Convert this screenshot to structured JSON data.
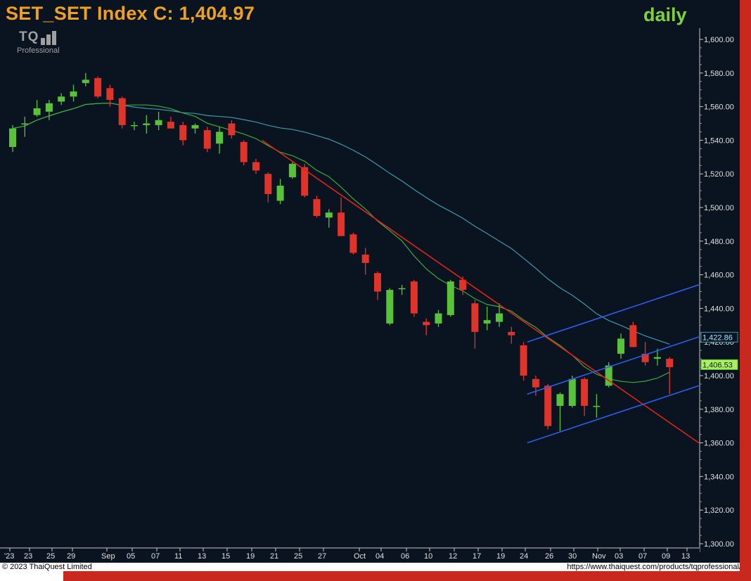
{
  "header": {
    "title": "SET_SET Index C: 1,404.97",
    "period": "daily",
    "logo_text": "TQ",
    "logo_sub": "Professional"
  },
  "footer": {
    "copyright": "© 2023 ThaiQuest Limited",
    "url": "https://www.thaiquest.com/products/tqprofessional/"
  },
  "colors": {
    "background": "#0a1420",
    "up": "#58c23a",
    "down": "#e0342a",
    "ma_short": "#3aa83a",
    "ma_long": "#3a9aaa",
    "trendline": "#e02418",
    "channel": "#2a5cf0",
    "title": "#f0a020",
    "period": "#7cd23a"
  },
  "chart_data": {
    "type": "candlestick",
    "ylim": [
      1290,
      1610
    ],
    "y_ticks": [
      "1,600.00",
      "1,580.00",
      "1,560.00",
      "1,540.00",
      "1,520.00",
      "1,500.00",
      "1,480.00",
      "1,460.00",
      "1,440.00",
      "1,420.00",
      "1,400.00",
      "1,380.00",
      "1,360.00",
      "1,340.00",
      "1,320.00",
      "1,300.00"
    ],
    "x_ticks": [
      "'23",
      "23",
      "25",
      "29",
      "Sep",
      "05",
      "07",
      "11",
      "13",
      "15",
      "19",
      "21",
      "25",
      "27",
      "Oct",
      "04",
      "06",
      "10",
      "12",
      "17",
      "19",
      "24",
      "26",
      "30",
      "Nov",
      "03",
      "07",
      "09",
      "13"
    ],
    "price_labels": [
      {
        "text": "1,422.86",
        "value": 1422.86
      },
      {
        "text": "1,406.53",
        "value": 1406.53
      }
    ],
    "candles": [
      {
        "o": 1536,
        "h": 1549,
        "l": 1533,
        "c": 1547
      },
      {
        "o": 1550,
        "h": 1554,
        "l": 1542,
        "c": 1550
      },
      {
        "o": 1555,
        "h": 1564,
        "l": 1554,
        "c": 1559
      },
      {
        "o": 1557,
        "h": 1564,
        "l": 1552,
        "c": 1562
      },
      {
        "o": 1563,
        "h": 1568,
        "l": 1561,
        "c": 1566
      },
      {
        "o": 1566,
        "h": 1573,
        "l": 1563,
        "c": 1569
      },
      {
        "o": 1574,
        "h": 1580,
        "l": 1572,
        "c": 1576
      },
      {
        "o": 1577,
        "h": 1578,
        "l": 1565,
        "c": 1566
      },
      {
        "o": 1571,
        "h": 1573,
        "l": 1560,
        "c": 1564
      },
      {
        "o": 1565,
        "h": 1566,
        "l": 1547,
        "c": 1549
      },
      {
        "o": 1549,
        "h": 1551,
        "l": 1546,
        "c": 1549
      },
      {
        "o": 1549,
        "h": 1555,
        "l": 1544,
        "c": 1550
      },
      {
        "o": 1549,
        "h": 1557,
        "l": 1546,
        "c": 1552
      },
      {
        "o": 1551,
        "h": 1554,
        "l": 1547,
        "c": 1547
      },
      {
        "o": 1549,
        "h": 1551,
        "l": 1537,
        "c": 1540
      },
      {
        "o": 1547,
        "h": 1550,
        "l": 1544,
        "c": 1549
      },
      {
        "o": 1546,
        "h": 1548,
        "l": 1533,
        "c": 1535
      },
      {
        "o": 1538,
        "h": 1548,
        "l": 1532,
        "c": 1545
      },
      {
        "o": 1550,
        "h": 1552,
        "l": 1541,
        "c": 1543
      },
      {
        "o": 1539,
        "h": 1540,
        "l": 1525,
        "c": 1527
      },
      {
        "o": 1527,
        "h": 1529,
        "l": 1520,
        "c": 1522
      },
      {
        "o": 1520,
        "h": 1521,
        "l": 1503,
        "c": 1508
      },
      {
        "o": 1504,
        "h": 1517,
        "l": 1502,
        "c": 1513
      },
      {
        "o": 1518,
        "h": 1527,
        "l": 1517,
        "c": 1526
      },
      {
        "o": 1524,
        "h": 1526,
        "l": 1506,
        "c": 1507
      },
      {
        "o": 1505,
        "h": 1507,
        "l": 1494,
        "c": 1495
      },
      {
        "o": 1494,
        "h": 1499,
        "l": 1488,
        "c": 1497
      },
      {
        "o": 1497,
        "h": 1506,
        "l": 1483,
        "c": 1483
      },
      {
        "o": 1484,
        "h": 1485,
        "l": 1472,
        "c": 1473
      },
      {
        "o": 1472,
        "h": 1476,
        "l": 1460,
        "c": 1467
      },
      {
        "o": 1461,
        "h": 1462,
        "l": 1445,
        "c": 1450
      },
      {
        "o": 1431,
        "h": 1452,
        "l": 1430,
        "c": 1451
      },
      {
        "o": 1452,
        "h": 1454,
        "l": 1448,
        "c": 1452
      },
      {
        "o": 1456,
        "h": 1457,
        "l": 1435,
        "c": 1437
      },
      {
        "o": 1432,
        "h": 1434,
        "l": 1424,
        "c": 1430
      },
      {
        "o": 1431,
        "h": 1439,
        "l": 1429,
        "c": 1437
      },
      {
        "o": 1436,
        "h": 1457,
        "l": 1435,
        "c": 1456
      },
      {
        "o": 1457,
        "h": 1459,
        "l": 1448,
        "c": 1451
      },
      {
        "o": 1443,
        "h": 1445,
        "l": 1416,
        "c": 1426
      },
      {
        "o": 1431,
        "h": 1441,
        "l": 1427,
        "c": 1433
      },
      {
        "o": 1432,
        "h": 1443,
        "l": 1429,
        "c": 1437
      },
      {
        "o": 1426,
        "h": 1429,
        "l": 1419,
        "c": 1424
      },
      {
        "o": 1418,
        "h": 1420,
        "l": 1397,
        "c": 1400
      },
      {
        "o": 1398,
        "h": 1400,
        "l": 1388,
        "c": 1393
      },
      {
        "o": 1394,
        "h": 1395,
        "l": 1368,
        "c": 1370
      },
      {
        "o": 1382,
        "h": 1390,
        "l": 1367,
        "c": 1389
      },
      {
        "o": 1382,
        "h": 1400,
        "l": 1381,
        "c": 1398
      },
      {
        "o": 1398,
        "h": 1399,
        "l": 1376,
        "c": 1382
      },
      {
        "o": 1382,
        "h": 1389,
        "l": 1375,
        "c": 1382
      },
      {
        "o": 1394,
        "h": 1408,
        "l": 1393,
        "c": 1406
      },
      {
        "o": 1413,
        "h": 1425,
        "l": 1410,
        "c": 1422
      },
      {
        "o": 1430,
        "h": 1432,
        "l": 1417,
        "c": 1417
      },
      {
        "o": 1413,
        "h": 1420,
        "l": 1406,
        "c": 1408
      },
      {
        "o": 1410,
        "h": 1416,
        "l": 1406,
        "c": 1411
      },
      {
        "o": 1410,
        "h": 1411,
        "l": 1389,
        "c": 1405
      }
    ]
  }
}
